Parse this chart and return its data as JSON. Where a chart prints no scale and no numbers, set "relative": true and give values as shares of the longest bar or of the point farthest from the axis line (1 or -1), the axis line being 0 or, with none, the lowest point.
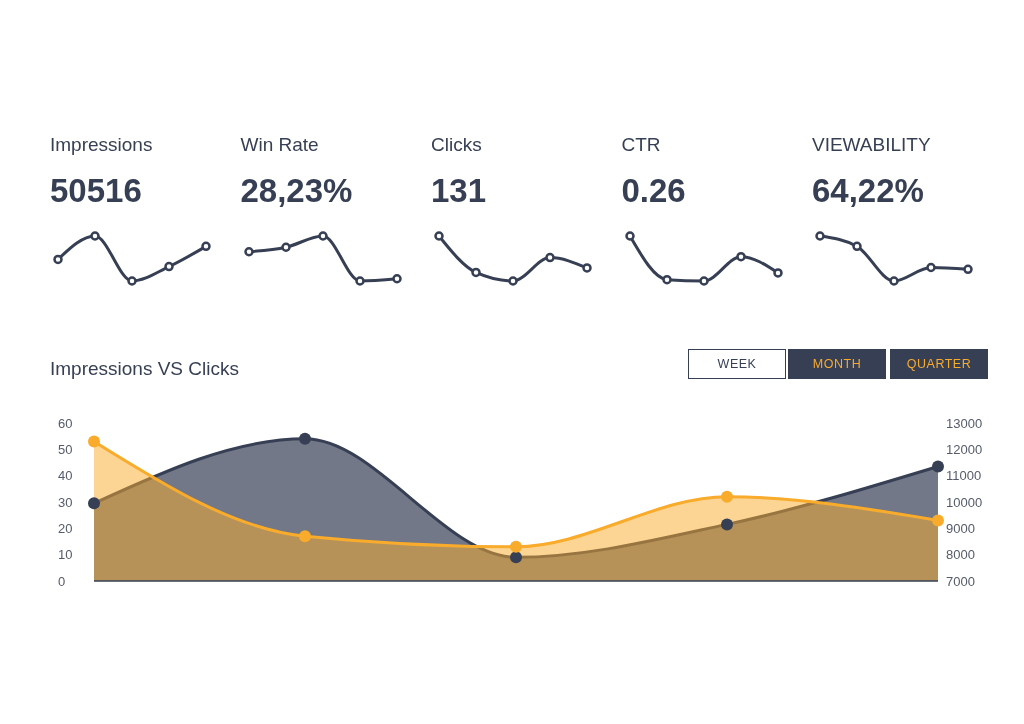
{
  "chart_data": [
    {
      "type": "line",
      "title": "Impressions",
      "subtitle": "50516",
      "relative": true,
      "categories": [
        null,
        null,
        null,
        null,
        null
      ],
      "marker": "circle",
      "series": [
        {
          "color": "#363f54",
          "values": [
            0.48,
            1,
            0,
            0.32,
            0.77
          ]
        }
      ]
    },
    {
      "type": "line",
      "title": "Win Rate",
      "subtitle": "28,23%",
      "relative": true,
      "categories": [
        null,
        null,
        null,
        null,
        null
      ],
      "marker": "circle",
      "series": [
        {
          "color": "#363f54",
          "values": [
            0.65,
            0.75,
            1,
            0,
            0.05
          ]
        }
      ]
    },
    {
      "type": "line",
      "title": "Clicks",
      "subtitle": "131",
      "relative": true,
      "categories": [
        null,
        null,
        null,
        null,
        null
      ],
      "marker": "circle",
      "series": [
        {
          "color": "#363f54",
          "values": [
            1,
            0.19,
            0,
            0.52,
            0.29
          ]
        }
      ]
    },
    {
      "type": "line",
      "title": "CTR",
      "subtitle": "0.26",
      "relative": true,
      "categories": [
        null,
        null,
        null,
        null,
        null
      ],
      "marker": "circle",
      "series": [
        {
          "color": "#363f54",
          "values": [
            1,
            0.03,
            0,
            0.54,
            0.18
          ]
        }
      ]
    },
    {
      "type": "line",
      "title": "VIEWABILITY",
      "subtitle": "64,22%",
      "relative": true,
      "categories": [
        null,
        null,
        null,
        null,
        null
      ],
      "marker": "circle",
      "series": [
        {
          "color": "#363f54",
          "values": [
            1,
            0.77,
            0,
            0.3,
            0.26
          ]
        }
      ]
    },
    {
      "type": "area",
      "title": "Impressions VS Clicks",
      "categories": [
        null,
        null,
        null,
        null,
        null
      ],
      "marker": "circle",
      "ylim": [
        0,
        60
      ],
      "yticks": [
        0,
        10,
        20,
        30,
        40,
        50,
        60
      ],
      "y2lim": [
        7000,
        13000
      ],
      "y2ticks": [
        7000,
        8000,
        9000,
        10000,
        11000,
        12000,
        13000
      ],
      "annotations": [
        "WEEK",
        "MONTH",
        "QUARTER"
      ],
      "series": [
        {
          "color": "#363f54",
          "values": [
            9950,
            12400,
            7900,
            9150,
            11350
          ],
          "axis": "y2"
        },
        {
          "color": "#f9ab2b",
          "values": [
            53,
            17,
            13,
            32,
            23
          ]
        }
      ]
    }
  ]
}
